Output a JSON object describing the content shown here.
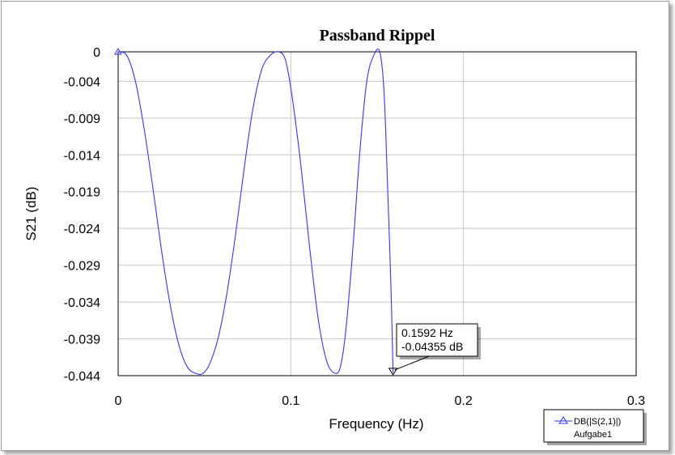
{
  "chart_data": {
    "type": "line",
    "title": "Passband Rippel",
    "xlabel": "Frequency (Hz)",
    "ylabel": "S21 (dB)",
    "xlim": [
      0,
      0.3
    ],
    "ylim": [
      -0.044,
      0
    ],
    "x_ticks": [
      0,
      0.1,
      0.2,
      0.3
    ],
    "x_tick_labels": [
      "0",
      "0.1",
      "0.2",
      "0.3"
    ],
    "y_ticks": [
      0,
      -0.004,
      -0.009,
      -0.014,
      -0.019,
      -0.024,
      -0.029,
      -0.034,
      -0.039,
      -0.044
    ],
    "y_tick_labels": [
      "0",
      "-0.004",
      "-0.009",
      "-0.014",
      "-0.019",
      "-0.024",
      "-0.029",
      "-0.034",
      "-0.039",
      "-0.044"
    ],
    "grid": true,
    "series": [
      {
        "name": "DB(|S(2,1)|)",
        "color": "#3333ff",
        "x": [
          0,
          0.005,
          0.01,
          0.015,
          0.02,
          0.025,
          0.03,
          0.035,
          0.04,
          0.045,
          0.049,
          0.053,
          0.058,
          0.063,
          0.068,
          0.073,
          0.078,
          0.083,
          0.088,
          0.093,
          0.097,
          0.101,
          0.106,
          0.111,
          0.116,
          0.121,
          0.126,
          0.129,
          0.132,
          0.136,
          0.14,
          0.144,
          0.148,
          0.1515,
          0.154,
          0.156,
          0.158,
          0.1592
        ],
        "y": [
          0,
          -0.0005,
          -0.004,
          -0.0104,
          -0.0183,
          -0.0268,
          -0.0342,
          -0.0397,
          -0.0428,
          -0.0437,
          -0.0437,
          -0.0424,
          -0.0388,
          -0.0328,
          -0.0248,
          -0.0158,
          -0.0078,
          -0.0025,
          -0.0005,
          0,
          -0.0012,
          -0.0065,
          -0.0158,
          -0.0268,
          -0.0365,
          -0.0422,
          -0.0437,
          -0.0425,
          -0.0375,
          -0.0265,
          -0.0135,
          -0.004,
          -0.0005,
          0,
          -0.0055,
          -0.018,
          -0.032,
          -0.04355
        ]
      }
    ],
    "marker": {
      "x": 0.1592,
      "y": -0.04355,
      "label_x": "0.1592 Hz",
      "label_y": "-0.04355 dB"
    },
    "legend": {
      "position": "bottom-right",
      "entry": "DB(|S(2,1)|)",
      "source": "Aufgabe1"
    }
  }
}
